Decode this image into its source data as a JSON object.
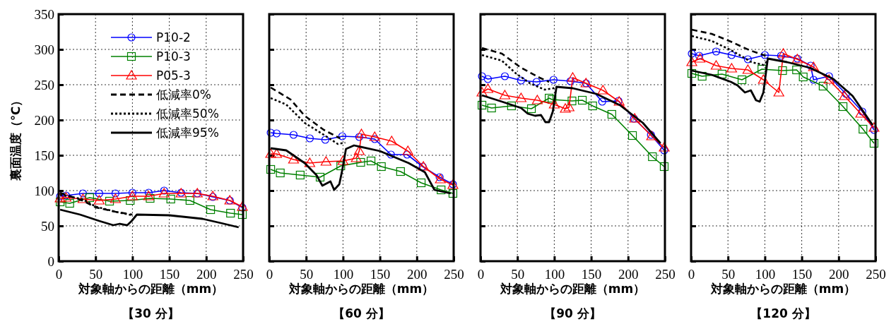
{
  "chart_data": [
    {
      "type": "line",
      "title": "【30 分】",
      "xlabel": "対象軸からの距離（mm）",
      "ylabel": "裏面温度（℃）",
      "xlim": [
        0,
        250
      ],
      "xticks": [
        0,
        50,
        100,
        150,
        200,
        250
      ],
      "ylim": [
        0,
        350
      ],
      "yticks": [
        0,
        50,
        100,
        150,
        200,
        250,
        300,
        350
      ],
      "grid": true,
      "legend": "top",
      "series": [
        {
          "name": "P10-2",
          "color": "#0000ff",
          "marker": "circle",
          "line_style": "solid",
          "x": [
            2,
            10,
            33,
            55,
            77,
            100,
            122,
            143,
            166,
            188,
            209,
            232,
            249
          ],
          "values": [
            92,
            93,
            96,
            96,
            96,
            97,
            97,
            100,
            97,
            96,
            91,
            86,
            76
          ]
        },
        {
          "name": "P10-3",
          "color": "#008000",
          "marker": "square",
          "line_style": "solid",
          "x": [
            2,
            15,
            42,
            69,
            97,
            124,
            152,
            178,
            206,
            233,
            249
          ],
          "values": [
            84,
            82,
            90,
            85,
            86,
            89,
            88,
            86,
            73,
            68,
            66
          ]
        },
        {
          "name": "P05-3",
          "color": "#ff0000",
          "marker": "triangle",
          "line_style": "solid",
          "x": [
            2,
            10,
            33,
            55,
            77,
            100,
            122,
            143,
            166,
            188,
            209,
            232,
            249
          ],
          "values": [
            89,
            90,
            88,
            86,
            88,
            92,
            92,
            96,
            96,
            96,
            92,
            86,
            77
          ]
        },
        {
          "name": "低減率0%",
          "color": "#000000",
          "marker": "none",
          "line_style": "dashed",
          "x": [
            2,
            32,
            51,
            77,
            100
          ],
          "values": [
            97,
            86,
            76,
            70,
            66
          ]
        },
        {
          "name": "低減率50%",
          "color": "#000000",
          "marker": "none",
          "line_style": "dotted",
          "x": [
            2,
            32,
            51,
            77,
            100
          ],
          "values": [
            94,
            88,
            77,
            70,
            65
          ]
        },
        {
          "name": "低減率95%",
          "color": "#000000",
          "marker": "none",
          "line_style": "solid",
          "x": [
            2,
            29,
            55,
            74,
            83,
            93,
            99,
            106,
            150,
            195,
            220,
            244
          ],
          "values": [
            73,
            66,
            57,
            51,
            53,
            51,
            57,
            66,
            65,
            60,
            54,
            48
          ]
        }
      ]
    },
    {
      "type": "line",
      "title": "【60 分】",
      "xlabel": "対象軸からの距離（mm）",
      "xlim": [
        0,
        250
      ],
      "xticks": [
        0,
        50,
        100,
        150,
        200,
        250
      ],
      "ylim": [
        0,
        350
      ],
      "yticks": [
        0,
        50,
        100,
        150,
        200,
        250,
        300,
        350
      ],
      "grid": true,
      "tick_labels": "x",
      "series": [
        {
          "color": "#0000ff",
          "marker": "circle",
          "line_style": "solid",
          "x": [
            2,
            10,
            33,
            55,
            76,
            99,
            122,
            143,
            165,
            187,
            208,
            231,
            249
          ],
          "values": [
            182,
            181,
            179,
            174,
            172,
            177,
            176,
            173,
            151,
            151,
            134,
            119,
            109
          ]
        },
        {
          "color": "#008000",
          "marker": "square",
          "line_style": "solid",
          "x": [
            2,
            15,
            42,
            69,
            97,
            124,
            138,
            152,
            178,
            206,
            233,
            249
          ],
          "values": [
            130,
            125,
            122,
            119,
            135,
            140,
            142,
            134,
            127,
            111,
            101,
            96
          ]
        },
        {
          "color": "#ff0000",
          "marker": "triangle",
          "line_style": "solid",
          "x": [
            2,
            10,
            33,
            55,
            77,
            100,
            118,
            122,
            125,
            143,
            166,
            188,
            209,
            232,
            249
          ],
          "values": [
            152,
            152,
            144,
            139,
            141,
            142,
            146,
            156,
            180,
            176,
            170,
            156,
            134,
            116,
            108
          ]
        },
        {
          "color": "#000000",
          "marker": "none",
          "line_style": "dashed",
          "x": [
            2,
            29,
            48,
            74,
            96
          ],
          "values": [
            246,
            229,
            206,
            186,
            174
          ]
        },
        {
          "color": "#000000",
          "marker": "none",
          "line_style": "dotted",
          "x": [
            2,
            23,
            48,
            74,
            93,
            103
          ],
          "values": [
            231,
            222,
            196,
            179,
            166,
            168
          ]
        },
        {
          "color": "#000000",
          "marker": "none",
          "line_style": "solid",
          "x": [
            2,
            23,
            48,
            64,
            72,
            83,
            88,
            95,
            99,
            104,
            115,
            150,
            189,
            211,
            224,
            246
          ],
          "values": [
            160,
            157,
            139,
            122,
            107,
            113,
            101,
            109,
            129,
            159,
            164,
            156,
            139,
            126,
            101,
            96
          ]
        }
      ]
    },
    {
      "type": "line",
      "title": "【90 分】",
      "xlabel": "対象軸からの距離（mm）",
      "xlim": [
        0,
        250
      ],
      "xticks": [
        0,
        50,
        100,
        150,
        200,
        250
      ],
      "ylim": [
        0,
        350
      ],
      "yticks": [
        0,
        50,
        100,
        150,
        200,
        250,
        300,
        350
      ],
      "grid": true,
      "tick_labels": "x",
      "series": [
        {
          "color": "#0000ff",
          "marker": "circle",
          "line_style": "solid",
          "x": [
            2,
            10,
            33,
            55,
            76,
            99,
            122,
            143,
            165,
            187,
            208,
            231,
            249
          ],
          "values": [
            262,
            258,
            262,
            256,
            254,
            257,
            255,
            252,
            226,
            227,
            202,
            179,
            157
          ]
        },
        {
          "color": "#008000",
          "marker": "square",
          "line_style": "solid",
          "x": [
            2,
            15,
            42,
            69,
            93,
            97,
            124,
            138,
            152,
            178,
            206,
            233,
            249
          ],
          "values": [
            221,
            217,
            220,
            216,
            231,
            229,
            227,
            228,
            220,
            208,
            178,
            148,
            134
          ]
        },
        {
          "color": "#ff0000",
          "marker": "triangle",
          "line_style": "solid",
          "x": [
            2,
            10,
            33,
            55,
            77,
            100,
            115,
            120,
            125,
            143,
            166,
            188,
            209,
            232,
            249
          ],
          "values": [
            239,
            244,
            235,
            231,
            228,
            222,
            216,
            218,
            260,
            252,
            242,
            226,
            202,
            177,
            161
          ]
        },
        {
          "color": "#000000",
          "marker": "none",
          "line_style": "dashed",
          "x": [
            2,
            29,
            55,
            80,
            93
          ],
          "values": [
            302,
            294,
            274,
            260,
            254
          ]
        },
        {
          "color": "#000000",
          "marker": "none",
          "line_style": "dotted",
          "x": [
            2,
            29,
            48,
            67,
            87,
            99,
            103
          ],
          "values": [
            292,
            284,
            266,
            252,
            243,
            245,
            247
          ]
        },
        {
          "color": "#000000",
          "marker": "none",
          "line_style": "solid",
          "x": [
            2,
            29,
            55,
            64,
            74,
            82,
            88,
            93,
            98,
            103,
            125,
            157,
            189,
            220,
            244
          ],
          "values": [
            235,
            226,
            217,
            209,
            206,
            207,
            197,
            197,
            212,
            247,
            245,
            237,
            221,
            196,
            167
          ]
        }
      ]
    },
    {
      "type": "line",
      "title": "【120 分】",
      "xlabel": "対象軸からの距離（mm）",
      "xlim": [
        0,
        250
      ],
      "xticks": [
        0,
        50,
        100,
        150,
        200,
        250
      ],
      "ylim": [
        0,
        350
      ],
      "yticks": [
        0,
        50,
        100,
        150,
        200,
        250,
        300,
        350
      ],
      "grid": true,
      "tick_labels": "x",
      "series": [
        {
          "color": "#0000ff",
          "marker": "circle",
          "line_style": "solid",
          "x": [
            1,
            11,
            34,
            55,
            77,
            100,
            122,
            144,
            162,
            166,
            187,
            210,
            232,
            248
          ],
          "values": [
            294,
            291,
            297,
            292,
            286,
            292,
            291,
            287,
            277,
            257,
            262,
            237,
            212,
            186
          ]
        },
        {
          "color": "#008000",
          "marker": "square",
          "line_style": "solid",
          "x": [
            1,
            15,
            42,
            69,
            96,
            124,
            143,
            152,
            179,
            206,
            233,
            248
          ],
          "values": [
            266,
            262,
            265,
            257,
            272,
            270,
            271,
            261,
            248,
            219,
            187,
            167
          ]
        },
        {
          "color": "#ff0000",
          "marker": "triangle",
          "line_style": "solid",
          "x": [
            1,
            12,
            34,
            55,
            77,
            98,
            119,
            125,
            144,
            166,
            187,
            208,
            230,
            248
          ],
          "values": [
            282,
            287,
            277,
            273,
            271,
            257,
            239,
            294,
            286,
            275,
            257,
            234,
            209,
            189
          ]
        },
        {
          "color": "#000000",
          "marker": "none",
          "line_style": "dashed",
          "x": [
            1,
            28,
            54,
            79,
            101
          ],
          "values": [
            328,
            322,
            311,
            299,
            291
          ]
        },
        {
          "color": "#000000",
          "marker": "none",
          "line_style": "dotted",
          "x": [
            1,
            28,
            54,
            82,
            98,
            104
          ],
          "values": [
            319,
            312,
            299,
            282,
            278,
            284
          ]
        },
        {
          "color": "#000000",
          "marker": "none",
          "line_style": "solid",
          "x": [
            1,
            28,
            54,
            63,
            73,
            81,
            88,
            93,
            98,
            104,
            130,
            161,
            193,
            219,
            246
          ],
          "values": [
            270,
            264,
            254,
            249,
            239,
            242,
            228,
            226,
            239,
            287,
            282,
            274,
            258,
            234,
            193
          ]
        }
      ]
    }
  ]
}
